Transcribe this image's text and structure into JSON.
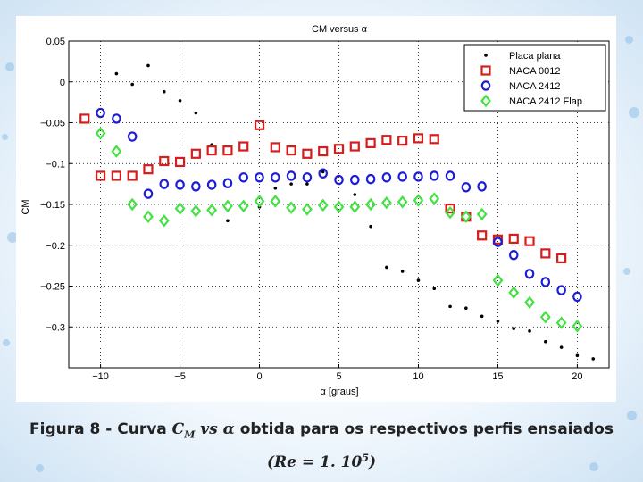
{
  "caption": {
    "prefix": "Figura 8 - Curva ",
    "math_main": "C",
    "math_sub": "M",
    "math_vs": " vs α ",
    "suffix": "obtida para os respectivos perfis ensaiados",
    "re_open": "(Re = 1. 10",
    "re_exp": "5",
    "re_close": ")"
  },
  "colors": {
    "accent": "#8fc0e8",
    "red": "#d61c1c",
    "blue": "#1c1cd6",
    "green": "#44e044",
    "black": "#000000"
  },
  "chart_data": {
    "type": "scatter",
    "title": "CM versus α",
    "xlabel": "α [graus]",
    "ylabel": "CM",
    "xlim": [
      -12,
      22
    ],
    "ylim": [
      -0.35,
      0.05
    ],
    "xticks": [
      -10,
      -5,
      0,
      5,
      10,
      15,
      20
    ],
    "yticks": [
      0.05,
      0,
      -0.05,
      -0.1,
      -0.15,
      -0.2,
      -0.25,
      -0.3
    ],
    "ytick_labels": [
      "0.05",
      "0",
      "−0.05",
      "−0.1",
      "−0.15",
      "−0.2",
      "−0.25",
      "−0.3"
    ],
    "grid": "dotted",
    "legend_position": "top-right",
    "series": [
      {
        "name": "Placa plana",
        "marker": "dot",
        "color": "#000000",
        "x": [
          -9,
          -8,
          -7,
          -6,
          -5,
          -4,
          -3,
          -2,
          0,
          1,
          2,
          3,
          4,
          6,
          7,
          8,
          9,
          10,
          11,
          12,
          13,
          14,
          15,
          16,
          17,
          18,
          19,
          20,
          21
        ],
        "y": [
          0.01,
          -0.003,
          0.02,
          -0.012,
          -0.023,
          -0.038,
          -0.077,
          -0.17,
          -0.153,
          -0.13,
          -0.125,
          -0.125,
          -0.11,
          -0.138,
          -0.177,
          -0.227,
          -0.232,
          -0.243,
          -0.253,
          -0.275,
          -0.277,
          -0.287,
          -0.293,
          -0.302,
          -0.305,
          -0.318,
          -0.325,
          -0.335,
          -0.339
        ]
      },
      {
        "name": "NACA 0012",
        "marker": "square",
        "color": "#d61c1c",
        "x": [
          -11,
          -10,
          -9,
          -8,
          -7,
          -6,
          -5,
          -4,
          -3,
          -2,
          -1,
          0,
          1,
          2,
          3,
          4,
          5,
          6,
          7,
          8,
          9,
          10,
          11,
          12,
          13,
          14,
          15,
          16,
          17,
          18,
          19
        ],
        "y": [
          -0.045,
          -0.115,
          -0.115,
          -0.115,
          -0.107,
          -0.097,
          -0.098,
          -0.088,
          -0.084,
          -0.084,
          -0.079,
          -0.053,
          -0.08,
          -0.084,
          -0.088,
          -0.085,
          -0.082,
          -0.079,
          -0.075,
          -0.071,
          -0.072,
          -0.069,
          -0.07,
          -0.155,
          -0.165,
          -0.188,
          -0.193,
          -0.192,
          -0.195,
          -0.21,
          -0.216
        ]
      },
      {
        "name": "NACA 2412",
        "marker": "circle",
        "color": "#1c1cd6",
        "x": [
          -10,
          -9,
          -8,
          -7,
          -6,
          -5,
          -4,
          -3,
          -2,
          -1,
          0,
          1,
          2,
          3,
          4,
          5,
          6,
          7,
          8,
          9,
          10,
          11,
          12,
          13,
          14,
          15,
          16,
          17,
          18,
          19,
          20
        ],
        "y": [
          -0.038,
          -0.045,
          -0.067,
          -0.137,
          -0.125,
          -0.126,
          -0.128,
          -0.126,
          -0.124,
          -0.117,
          -0.117,
          -0.117,
          -0.115,
          -0.117,
          -0.112,
          -0.12,
          -0.12,
          -0.119,
          -0.117,
          -0.116,
          -0.116,
          -0.115,
          -0.115,
          -0.129,
          -0.128,
          -0.196,
          -0.212,
          -0.235,
          -0.245,
          -0.255,
          -0.263
        ]
      },
      {
        "name": "NACA 2412 Flap",
        "marker": "diamond",
        "color": "#44e044",
        "x": [
          -10,
          -9,
          -8,
          -7,
          -6,
          -5,
          -4,
          -3,
          -2,
          -1,
          0,
          1,
          2,
          3,
          4,
          5,
          6,
          7,
          8,
          9,
          10,
          11,
          12,
          13,
          14,
          15,
          16,
          17,
          18,
          19,
          20
        ],
        "y": [
          -0.063,
          -0.085,
          -0.15,
          -0.165,
          -0.17,
          -0.155,
          -0.158,
          -0.157,
          -0.152,
          -0.152,
          -0.146,
          -0.146,
          -0.154,
          -0.156,
          -0.151,
          -0.153,
          -0.153,
          -0.15,
          -0.148,
          -0.147,
          -0.145,
          -0.143,
          -0.16,
          -0.165,
          -0.162,
          -0.243,
          -0.258,
          -0.27,
          -0.288,
          -0.295,
          -0.299
        ]
      }
    ]
  }
}
